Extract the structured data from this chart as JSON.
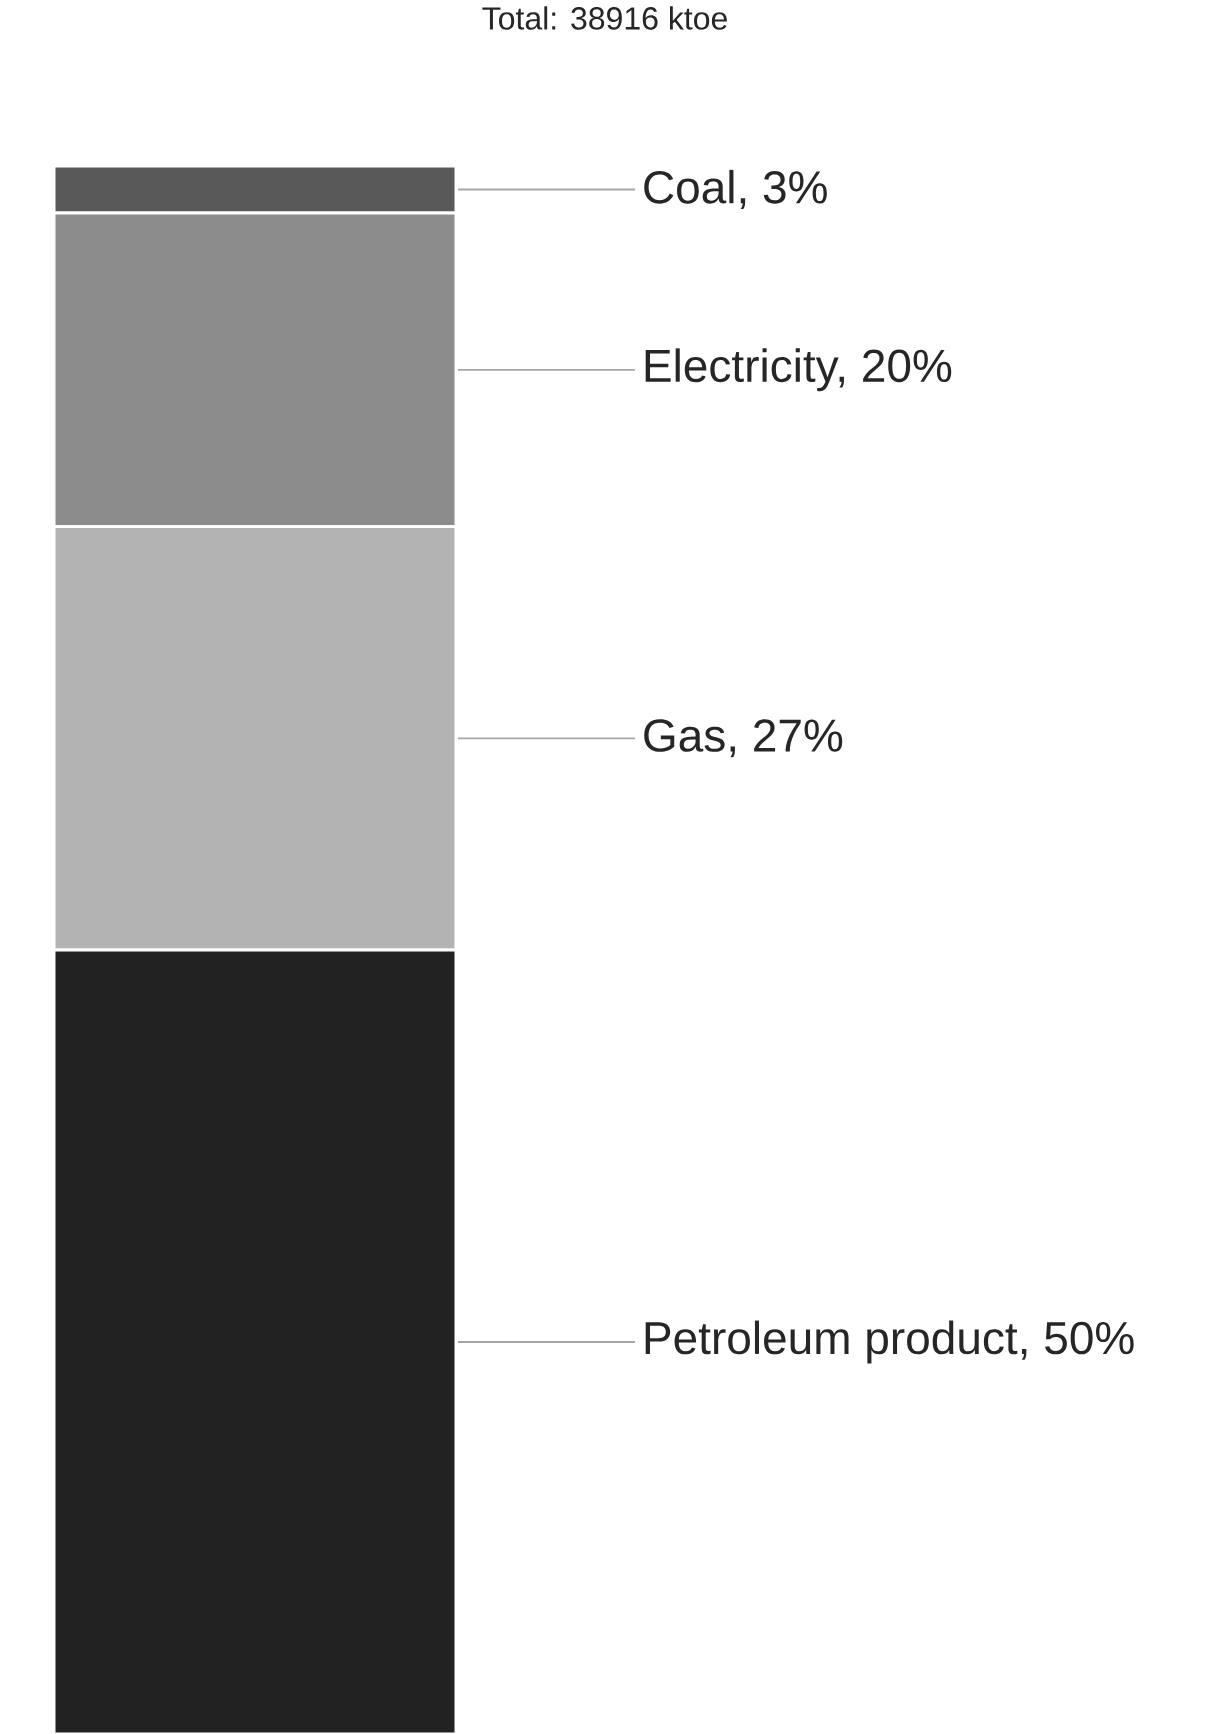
{
  "chart_data": {
    "type": "bar",
    "title": "Total: 38916 ktoe",
    "stacked": true,
    "categories": [
      null
    ],
    "series": [
      {
        "color": "#222222",
        "values": [
          50
        ],
        "value_labels": [
          "Petroleum product, 50%"
        ]
      },
      {
        "color": "#b3b3b3",
        "values": [
          27
        ],
        "value_labels": [
          "Gas, 27%"
        ]
      },
      {
        "color": "#8c8c8c",
        "values": [
          20
        ],
        "value_labels": [
          "Electricity, 20%"
        ]
      },
      {
        "color": "#595959",
        "values": [
          3
        ],
        "value_labels": [
          "Coal, 3%"
        ]
      }
    ]
  }
}
